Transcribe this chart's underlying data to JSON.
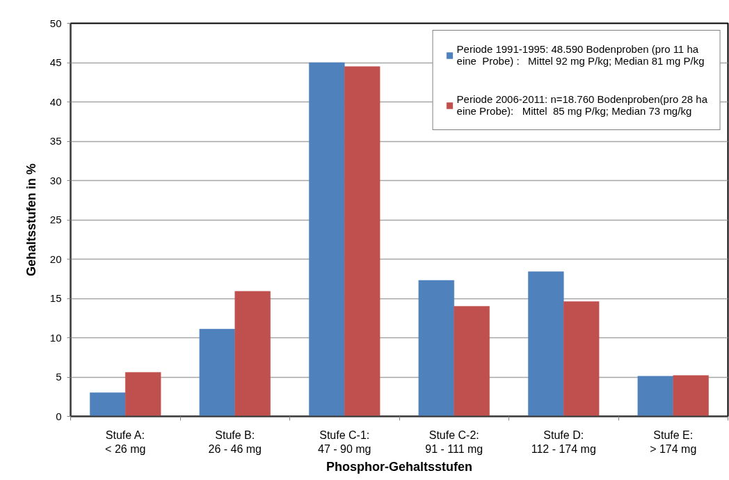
{
  "chart_data": {
    "type": "bar",
    "xlabel": "Phosphor-Gehaltsstufen",
    "ylabel": "Gehaltsstufen in %",
    "categories": [
      "Stufe A:\n< 26 mg",
      "Stufe B:\n26 - 46 mg",
      "Stufe C-1:\n47 - 90 mg",
      "Stufe C-2:\n91 - 111 mg",
      "Stufe D:\n112 - 174 mg",
      "Stufe E:\n> 174 mg"
    ],
    "series": [
      {
        "name": "Periode 1991-1995: 48.590 Bodenproben (pro 11 ha\neine  Probe) :   Mittel 92 mg P/kg; Median 81 mg P/kg",
        "color": "#4f81bd",
        "values": [
          3.0,
          11.1,
          45.0,
          17.3,
          18.4,
          5.1
        ]
      },
      {
        "name": "Periode 2006-2011: n=18.760 Bodenproben(pro 28 ha\neine Probe):   Mittel  85 mg P/kg; Median 73 mg/kg",
        "color": "#c0504d",
        "values": [
          5.6,
          15.9,
          44.5,
          14.0,
          14.6,
          5.2
        ]
      }
    ],
    "ylim": [
      0,
      50
    ],
    "yticks": [
      0,
      5,
      10,
      15,
      20,
      25,
      30,
      35,
      40,
      45,
      50
    ],
    "grid": "y",
    "legend": "top right"
  }
}
